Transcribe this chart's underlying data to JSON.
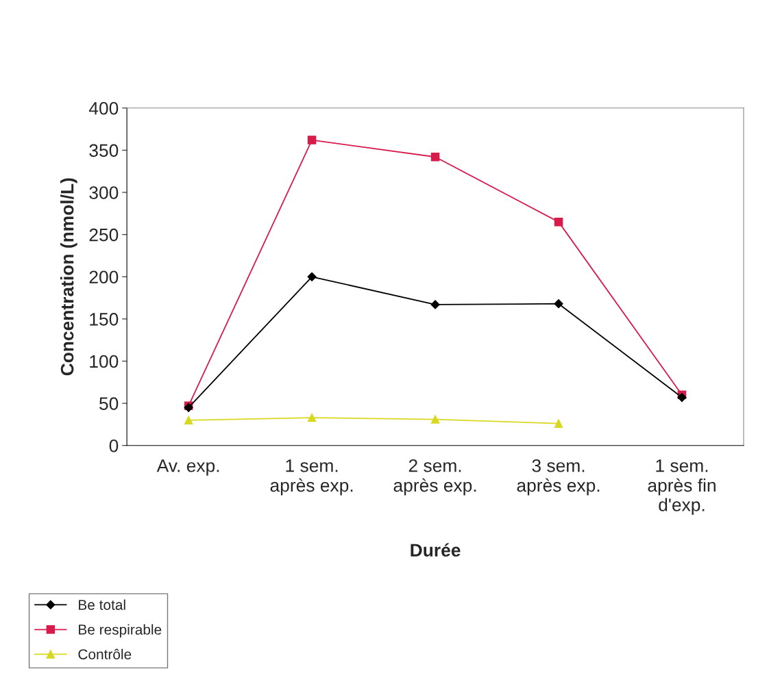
{
  "chart_data": {
    "type": "line",
    "xlabel": "Durée",
    "ylabel": "Concentration (nmol/L)",
    "categories": [
      "Av. exp.",
      "1 sem.\naprès exp.",
      "2 sem.\naprès exp.",
      "3 sem.\naprès exp.",
      "1 sem.\naprès fin\nd'exp."
    ],
    "series": [
      {
        "name": "Be total",
        "color": "#000000",
        "marker": "diamond",
        "values": [
          45,
          200,
          167,
          168,
          57
        ]
      },
      {
        "name": "Be respirable",
        "color": "#d81b4a",
        "marker": "square",
        "values": [
          47,
          362,
          342,
          265,
          60
        ]
      },
      {
        "name": "Contrôle",
        "color": "#d8d820",
        "marker": "triangle",
        "values": [
          30,
          33,
          31,
          26,
          null
        ]
      }
    ],
    "ylim": [
      0,
      400
    ],
    "yticks": [
      0,
      50,
      100,
      150,
      200,
      250,
      300,
      350,
      400
    ],
    "grid": false,
    "legend": "bottom left"
  }
}
